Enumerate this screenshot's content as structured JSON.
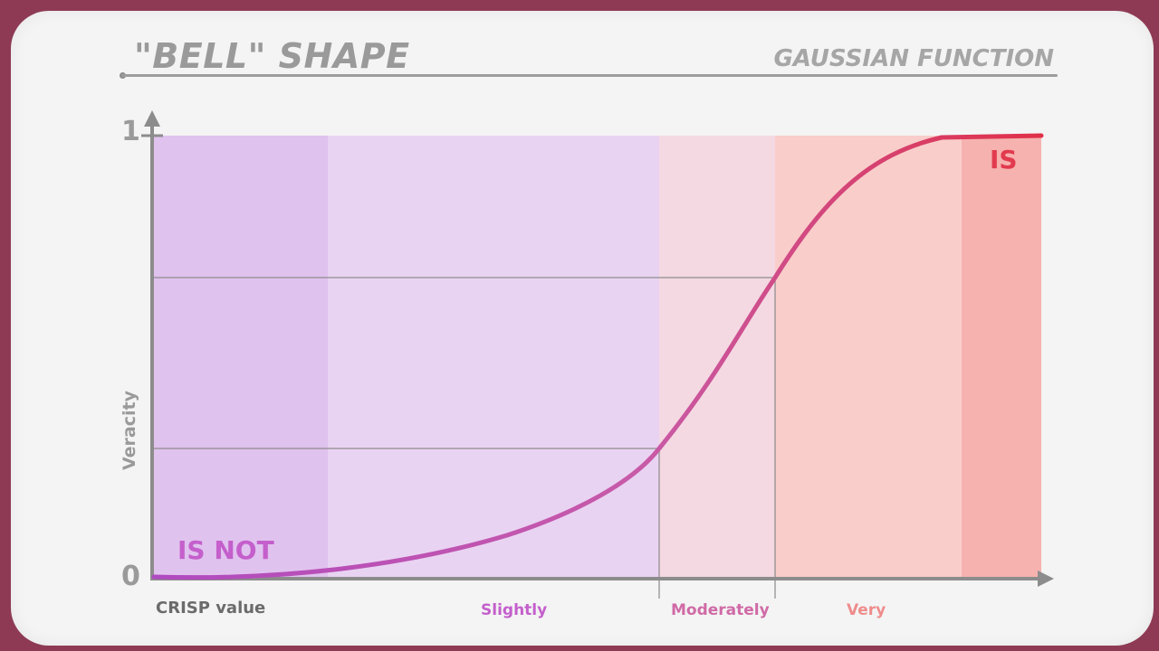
{
  "header": {
    "title": "\"BELL\" SHAPE",
    "subtitle": "GAUSSIAN FUNCTION"
  },
  "axes": {
    "y_max_label": "1",
    "y_min_label": "0",
    "y_label": "Veracity",
    "x_label": "CRISP value"
  },
  "zones": {
    "slightly": "Slightly",
    "moderately": "Moderately",
    "very": "Very"
  },
  "annotations": {
    "is_not": "IS NOT",
    "is": "IS"
  },
  "colors": {
    "frame": "#8e3a55",
    "purple_zone": "#e3c8ef",
    "purple_strong": "#dab4ea",
    "pink_zone": "#f3d3df",
    "red_zone": "#f8c3c0",
    "red_strong": "#f5aaa8",
    "curve_start": "#b04ac0",
    "curve_end": "#e03048",
    "grid": "#8a8a8a"
  }
}
